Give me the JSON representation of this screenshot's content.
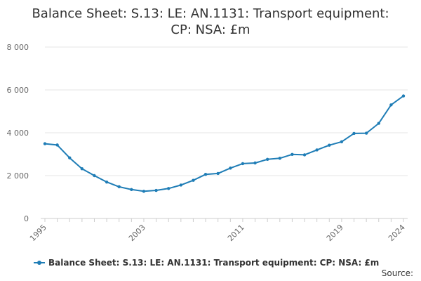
{
  "chart_data": {
    "type": "line",
    "title_line1": "Balance Sheet: S.13: LE: AN.1131: Transport equipment:",
    "title_line2": "CP: NSA: £m",
    "x": [
      1995,
      1996,
      1997,
      1998,
      1999,
      2000,
      2001,
      2002,
      2003,
      2004,
      2005,
      2006,
      2007,
      2008,
      2009,
      2010,
      2011,
      2012,
      2013,
      2014,
      2015,
      2016,
      2017,
      2018,
      2019,
      2020,
      2021,
      2022,
      2023,
      2024
    ],
    "series": [
      {
        "name": "Balance Sheet: S.13: LE: AN.1131: Transport equipment: CP: NSA: £m",
        "color": "#1f7db6",
        "values": [
          3490,
          3430,
          2830,
          2320,
          2000,
          1700,
          1480,
          1350,
          1270,
          1310,
          1400,
          1560,
          1780,
          2060,
          2100,
          2350,
          2560,
          2590,
          2760,
          2810,
          2990,
          2970,
          3200,
          3420,
          3580,
          3970,
          3980,
          4440,
          5300,
          5720
        ]
      }
    ],
    "y_ticks": [
      0,
      2000,
      4000,
      6000,
      8000
    ],
    "y_tick_labels": [
      "0",
      "2 000",
      "4 000",
      "6 000",
      "8 000"
    ],
    "x_tick_labels": [
      "1995",
      "2003",
      "2011",
      "2019",
      "2024"
    ],
    "ylim": [
      0,
      8000
    ],
    "xlim": [
      1995,
      2024
    ],
    "grid": true,
    "legend_position": "bottom-left",
    "source_label": "Source:"
  }
}
